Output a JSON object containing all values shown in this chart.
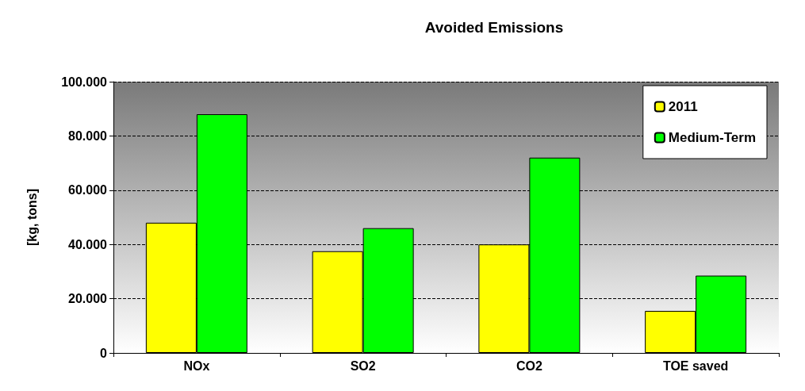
{
  "chart_data": {
    "type": "bar",
    "title": "Avoided Emissions",
    "ylabel": "[kg, tons]",
    "categories": [
      "NOx",
      "SO2",
      "CO2",
      "TOE saved"
    ],
    "series": [
      {
        "name": "2011",
        "color": "#ffff00",
        "values": [
          48000,
          37500,
          40000,
          15500
        ]
      },
      {
        "name": "Medium-Term",
        "color": "#00ff00",
        "values": [
          88000,
          46000,
          72000,
          28500
        ]
      }
    ],
    "ylim": [
      0,
      100000
    ],
    "yticks": [
      {
        "value": 0,
        "label": "0"
      },
      {
        "value": 20000,
        "label": "20.000"
      },
      {
        "value": 40000,
        "label": "40.000"
      },
      {
        "value": 60000,
        "label": "60.000"
      },
      {
        "value": 80000,
        "label": "80.000"
      },
      {
        "value": 100000,
        "label": "100.000"
      }
    ],
    "grid": "y",
    "legend": "top right"
  }
}
